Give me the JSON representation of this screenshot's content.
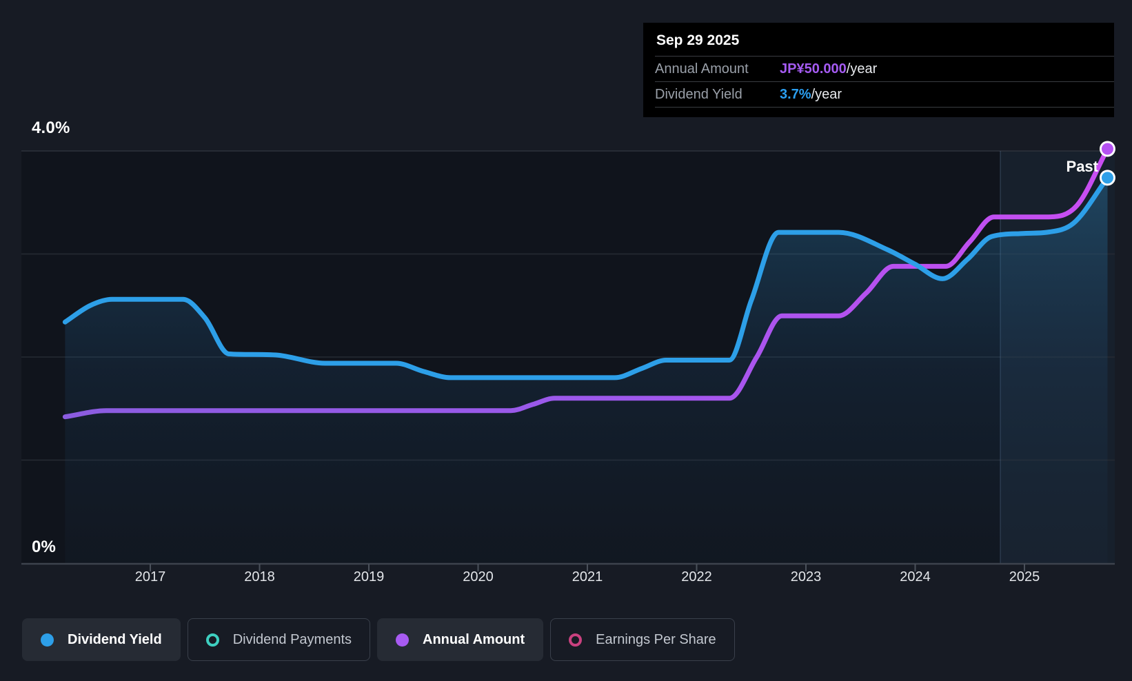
{
  "page": {
    "background": "#171b24",
    "plot_background": "#10141c"
  },
  "tooltip": {
    "date": "Sep 29 2025",
    "rows": [
      {
        "label": "Annual Amount",
        "value": "JP¥50.000",
        "suffix": "/year",
        "value_color": "#a55bf2"
      },
      {
        "label": "Dividend Yield",
        "value": "3.7%",
        "suffix": "/year",
        "value_color": "#2b9ff0"
      }
    ]
  },
  "axis": {
    "y_top_label": "4.0%",
    "y_bottom_label": "0%",
    "past_label": "Past",
    "years": [
      "2017",
      "2018",
      "2019",
      "2020",
      "2021",
      "2022",
      "2023",
      "2024",
      "2025"
    ]
  },
  "legend": [
    {
      "label": "Dividend Yield",
      "color": "#2d9fe8",
      "marker": "filled",
      "active": true
    },
    {
      "label": "Dividend Payments",
      "color": "#3ecfc0",
      "marker": "ring",
      "active": false
    },
    {
      "label": "Annual Amount",
      "color": "#a85bf2",
      "marker": "filled",
      "active": true
    },
    {
      "label": "Earnings Per Share",
      "color": "#c9417f",
      "marker": "ring",
      "active": false
    }
  ],
  "chart_data": {
    "type": "line",
    "title": "Dividend yield and payments history",
    "x_range": [
      2016.22,
      2025.78
    ],
    "y_axis": {
      "min": 0,
      "max": 4.0,
      "unit": "%",
      "gridlines_pct": [
        4,
        3,
        2,
        1,
        0
      ],
      "labeled_ticks": [
        "4.0%",
        "0%"
      ]
    },
    "x_ticks": [
      2017,
      2018,
      2019,
      2020,
      2021,
      2022,
      2023,
      2024,
      2025
    ],
    "past_divider_x_year": 2024.78,
    "legend_position": "bottom",
    "grid": "horizontal-only",
    "series": [
      {
        "name": "Dividend Yield",
        "unit": "%",
        "color": "#2d9fe8",
        "end_value_label": "3.7%/year",
        "points": [
          [
            2016.22,
            2.34
          ],
          [
            2016.45,
            2.5
          ],
          [
            2016.65,
            2.56
          ],
          [
            2017.3,
            2.56
          ],
          [
            2017.5,
            2.38
          ],
          [
            2017.72,
            2.03
          ],
          [
            2018.15,
            2.02
          ],
          [
            2018.6,
            1.94
          ],
          [
            2019.25,
            1.94
          ],
          [
            2019.5,
            1.86
          ],
          [
            2019.75,
            1.8
          ],
          [
            2021.25,
            1.8
          ],
          [
            2021.5,
            1.89
          ],
          [
            2021.72,
            1.97
          ],
          [
            2022.3,
            1.97
          ],
          [
            2022.5,
            2.55
          ],
          [
            2022.75,
            3.21
          ],
          [
            2023.3,
            3.21
          ],
          [
            2023.75,
            3.04
          ],
          [
            2024.0,
            2.9
          ],
          [
            2024.25,
            2.76
          ],
          [
            2024.48,
            2.95
          ],
          [
            2024.7,
            3.17
          ],
          [
            2025.0,
            3.2
          ],
          [
            2025.2,
            3.21
          ],
          [
            2025.45,
            3.3
          ],
          [
            2025.76,
            3.74
          ]
        ]
      },
      {
        "name": "Annual Amount",
        "unit": "axis-%-equivalent",
        "color_start": "#8b5ce0",
        "color_end": "#c94ef2",
        "end_value_label": "JP¥50.000/year",
        "step_values_jpy_approx": [
          18,
          20,
          30,
          36,
          42,
          50
        ],
        "points": [
          [
            2016.22,
            1.42
          ],
          [
            2016.6,
            1.48
          ],
          [
            2020.3,
            1.48
          ],
          [
            2020.5,
            1.54
          ],
          [
            2020.7,
            1.6
          ],
          [
            2022.3,
            1.6
          ],
          [
            2022.55,
            2.0
          ],
          [
            2022.78,
            2.4
          ],
          [
            2023.3,
            2.4
          ],
          [
            2023.55,
            2.62
          ],
          [
            2023.8,
            2.88
          ],
          [
            2024.28,
            2.88
          ],
          [
            2024.5,
            3.12
          ],
          [
            2024.72,
            3.36
          ],
          [
            2025.22,
            3.36
          ],
          [
            2025.48,
            3.47
          ],
          [
            2025.76,
            4.02
          ]
        ]
      }
    ]
  }
}
